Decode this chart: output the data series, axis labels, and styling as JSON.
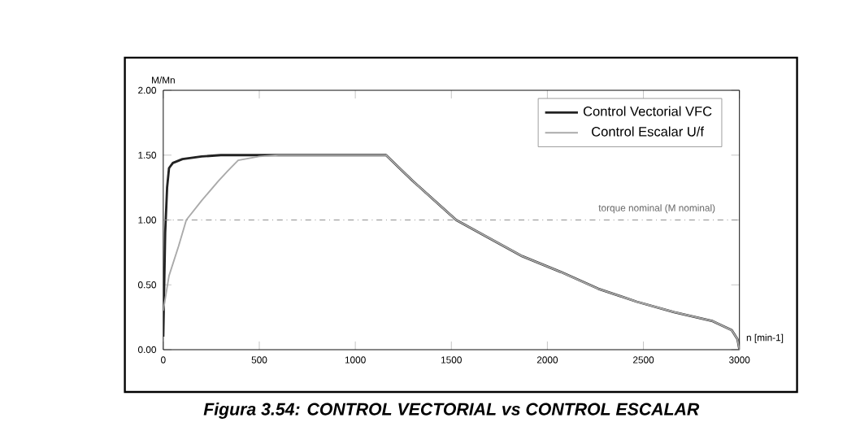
{
  "chart_data": {
    "type": "line",
    "title": "Figura 3.54: CONTROL VECTORIAL vs CONTROL ESCALAR",
    "xlabel": "n [min-1]",
    "ylabel": "M/Mn",
    "xlim": [
      0,
      3000
    ],
    "ylim": [
      0,
      2
    ],
    "xticks": [
      0,
      500,
      1000,
      1500,
      2000,
      2500,
      3000
    ],
    "yticks": [
      {
        "value": 0,
        "label": "0.00"
      },
      {
        "value": 0.5,
        "label": "0.50"
      },
      {
        "value": 1,
        "label": "1.00"
      },
      {
        "value": 1.5,
        "label": "1.50"
      },
      {
        "value": 2,
        "label": "2.00"
      }
    ],
    "legend": "top right",
    "grid": false,
    "ref_lines": [
      {
        "axis": "y",
        "value": 1,
        "label": "torque nominal (M nominal)",
        "color": "#888888",
        "line_style": "dashed"
      }
    ],
    "series": [
      {
        "name": "Control Vectorial VFC",
        "color": "#222222",
        "x": [
          0,
          10,
          20,
          30,
          50,
          100,
          200,
          300,
          1160,
          1300,
          1525,
          1673,
          1870,
          2069,
          2265,
          2465,
          2660,
          2861,
          2960,
          2990,
          3000
        ],
        "values": [
          0.1,
          0.9,
          1.25,
          1.4,
          1.44,
          1.47,
          1.49,
          1.5,
          1.5,
          1.3,
          1.0,
          0.88,
          0.72,
          0.6,
          0.47,
          0.37,
          0.29,
          0.22,
          0.15,
          0.08,
          0.0
        ]
      },
      {
        "name": "Control Escalar U/f",
        "color": "#aaaaaa",
        "x": [
          0,
          30,
          80,
          120,
          200,
          287,
          337,
          390,
          500,
          600,
          1160,
          1300,
          1525,
          1673,
          1870,
          2069,
          2265,
          2465,
          2660,
          2861,
          2960,
          2990,
          3000
        ],
        "values": [
          0.3,
          0.57,
          0.8,
          1.0,
          1.15,
          1.3,
          1.38,
          1.46,
          1.49,
          1.5,
          1.5,
          1.3,
          1.0,
          0.88,
          0.72,
          0.6,
          0.47,
          0.37,
          0.29,
          0.22,
          0.15,
          0.08,
          0.0
        ]
      }
    ]
  }
}
